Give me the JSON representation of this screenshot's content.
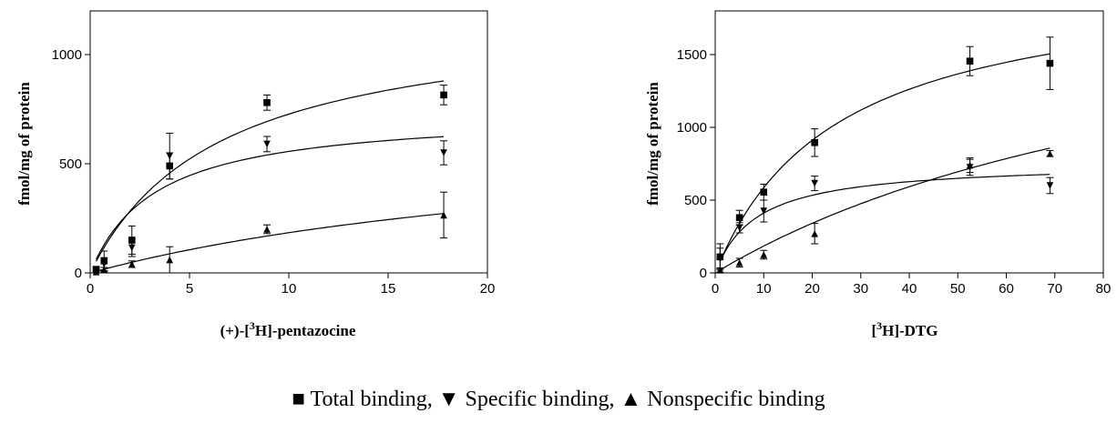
{
  "legend_text": "■ Total binding, ▼ Specific binding, ▲ Nonspecific binding",
  "chart_data": [
    {
      "type": "scatter",
      "ylabel": "fmol/mg of protein",
      "xlabel_prefix": "(+)-[",
      "xlabel_sup": "3",
      "xlabel_suffix": "H]-pentazocine",
      "xlim": [
        0,
        20
      ],
      "ylim": [
        0,
        1200
      ],
      "xticks": [
        0,
        5,
        10,
        15,
        20
      ],
      "yticks": [
        0,
        500,
        1000
      ],
      "grid": false,
      "series": [
        {
          "name": "Total binding",
          "marker": "square",
          "x": [
            0.3,
            0.7,
            2.1,
            4.0,
            8.9,
            17.8
          ],
          "y": [
            15,
            55,
            150,
            490,
            780,
            815
          ],
          "err": [
            15,
            45,
            65,
            60,
            35,
            45
          ],
          "fit": {
            "bmax": 1200,
            "kd": 6.5
          }
        },
        {
          "name": "Specific binding",
          "marker": "triangle-down",
          "x": [
            0.3,
            0.7,
            2.1,
            4.0,
            8.9,
            17.8
          ],
          "y": [
            10,
            40,
            115,
            535,
            590,
            550
          ],
          "err": [
            10,
            30,
            40,
            105,
            35,
            55
          ],
          "fit": {
            "bmax": 740,
            "kd": 3.3
          }
        },
        {
          "name": "Nonspecific binding",
          "marker": "triangle-up",
          "x": [
            0.3,
            0.7,
            2.1,
            4.0,
            8.9,
            17.8
          ],
          "y": [
            5,
            15,
            40,
            60,
            200,
            265
          ],
          "err": [
            5,
            10,
            15,
            60,
            20,
            105
          ],
          "fit": {
            "bmax": 700,
            "kd": 28
          }
        }
      ]
    },
    {
      "type": "scatter",
      "ylabel": "fmol/mg of protein",
      "xlabel_prefix": "[",
      "xlabel_sup": "3",
      "xlabel_suffix": "H]-DTG",
      "xlim": [
        0,
        80
      ],
      "ylim": [
        0,
        1800
      ],
      "xticks": [
        0,
        10,
        20,
        30,
        40,
        50,
        60,
        70,
        80
      ],
      "yticks": [
        0,
        500,
        1000,
        1500
      ],
      "grid": false,
      "series": [
        {
          "name": "Total binding",
          "marker": "square",
          "x": [
            1,
            5,
            10,
            20.5,
            52.5,
            69
          ],
          "y": [
            110,
            380,
            555,
            895,
            1455,
            1440
          ],
          "err": [
            90,
            50,
            55,
            95,
            100,
            180
          ],
          "fit": {
            "bmax": 2050,
            "kd": 25
          }
        },
        {
          "name": "Specific binding",
          "marker": "triangle-down",
          "x": [
            1,
            5,
            10,
            20.5,
            52.5,
            69
          ],
          "y": [
            100,
            310,
            425,
            615,
            725,
            600
          ],
          "err": [
            70,
            35,
            75,
            50,
            55,
            55
          ],
          "fit": {
            "bmax": 760,
            "kd": 8.5
          }
        },
        {
          "name": "Nonspecific binding",
          "marker": "triangle-up",
          "x": [
            1,
            5,
            10,
            20.5,
            52.5,
            69
          ],
          "y": [
            20,
            70,
            125,
            270,
            740,
            820
          ],
          "err": [
            15,
            30,
            30,
            70,
            50,
            20
          ],
          "fit": {
            "bmax": 2250,
            "kd": 112
          }
        }
      ]
    }
  ]
}
